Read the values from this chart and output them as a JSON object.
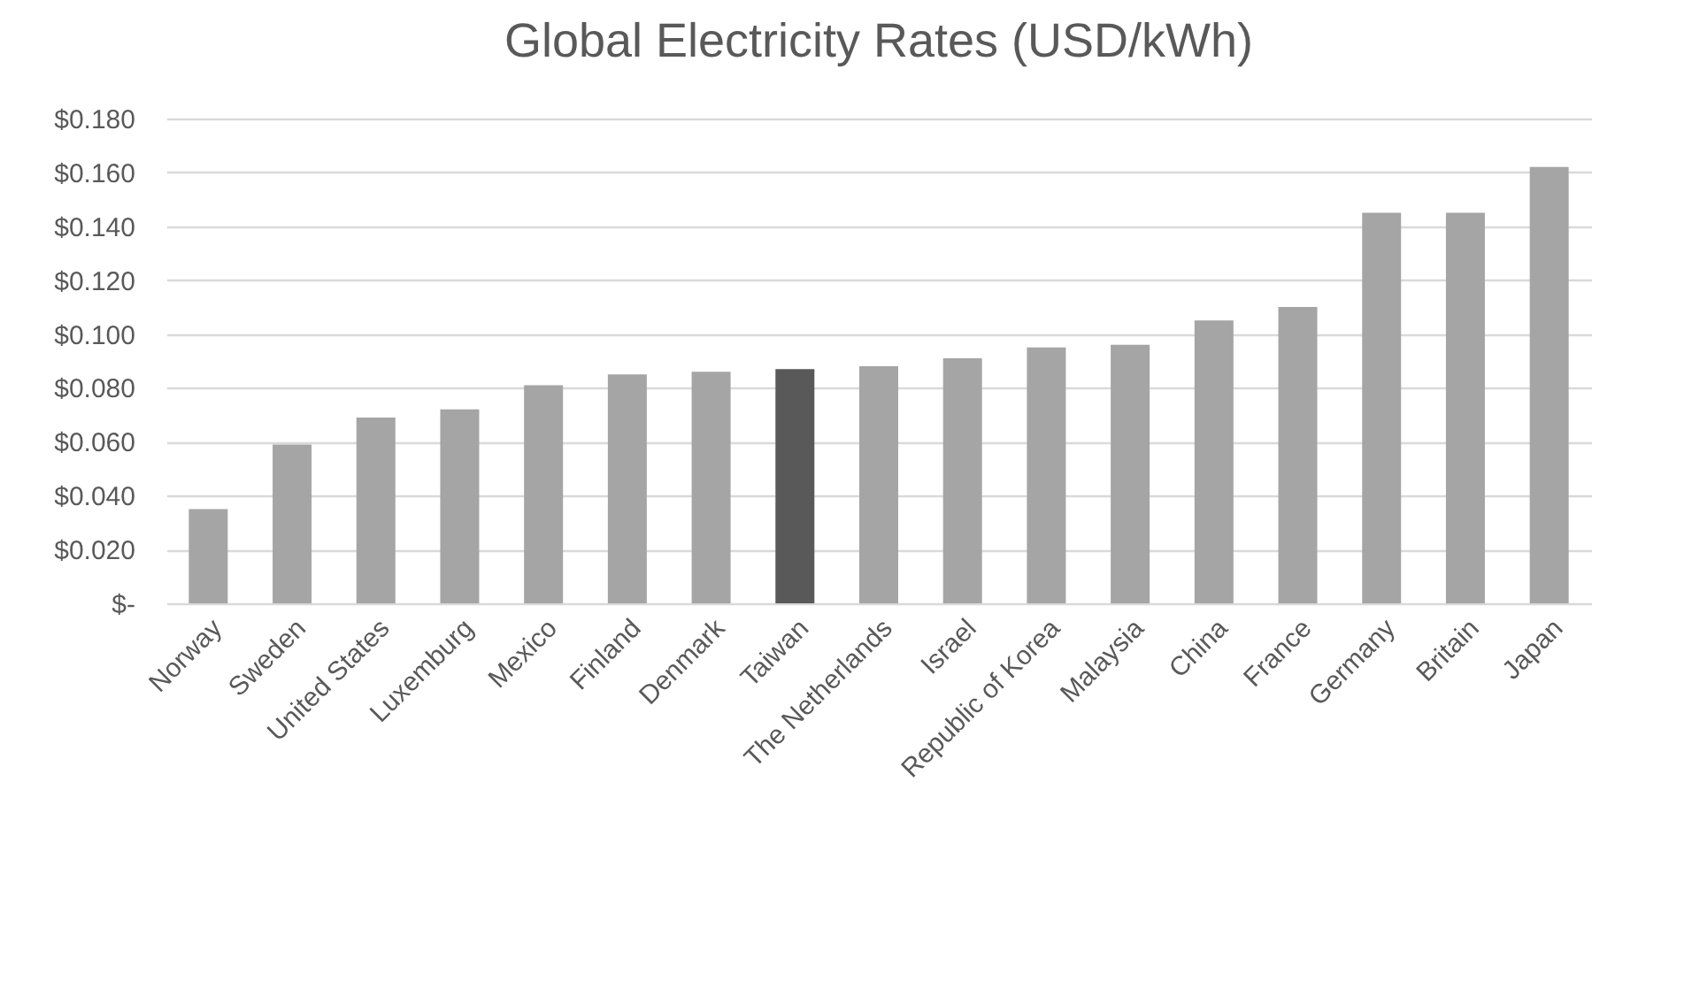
{
  "chart_data": {
    "type": "bar",
    "title": "Global Electricity Rates (USD/kWh)",
    "categories": [
      "Norway",
      "Sweden",
      "United States",
      "Luxemburg",
      "Mexico",
      "Finland",
      "Denmark",
      "Taiwan",
      "The Netherlands",
      "Israel",
      "Republic of Korea",
      "Malaysia",
      "China",
      "France",
      "Germany",
      "Britain",
      "Japan"
    ],
    "values": [
      0.035,
      0.059,
      0.069,
      0.072,
      0.081,
      0.085,
      0.086,
      0.087,
      0.088,
      0.091,
      0.095,
      0.096,
      0.105,
      0.11,
      0.145,
      0.145,
      0.162
    ],
    "colors": [
      "#a5a5a5",
      "#a5a5a5",
      "#a5a5a5",
      "#a5a5a5",
      "#a5a5a5",
      "#a5a5a5",
      "#a5a5a5",
      "#595959",
      "#a5a5a5",
      "#a5a5a5",
      "#a5a5a5",
      "#a5a5a5",
      "#a5a5a5",
      "#a5a5a5",
      "#a5a5a5",
      "#a5a5a5",
      "#a5a5a5"
    ],
    "ylim": [
      0,
      0.18
    ],
    "yticks": [
      {
        "value": 0,
        "label": "$-"
      },
      {
        "value": 0.02,
        "label": "$0.020"
      },
      {
        "value": 0.04,
        "label": "$0.040"
      },
      {
        "value": 0.06,
        "label": "$0.060"
      },
      {
        "value": 0.08,
        "label": "$0.080"
      },
      {
        "value": 0.1,
        "label": "$0.100"
      },
      {
        "value": 0.12,
        "label": "$0.120"
      },
      {
        "value": 0.14,
        "label": "$0.140"
      },
      {
        "value": 0.16,
        "label": "$0.160"
      },
      {
        "value": 0.18,
        "label": "$0.180"
      }
    ],
    "grid": "y"
  }
}
